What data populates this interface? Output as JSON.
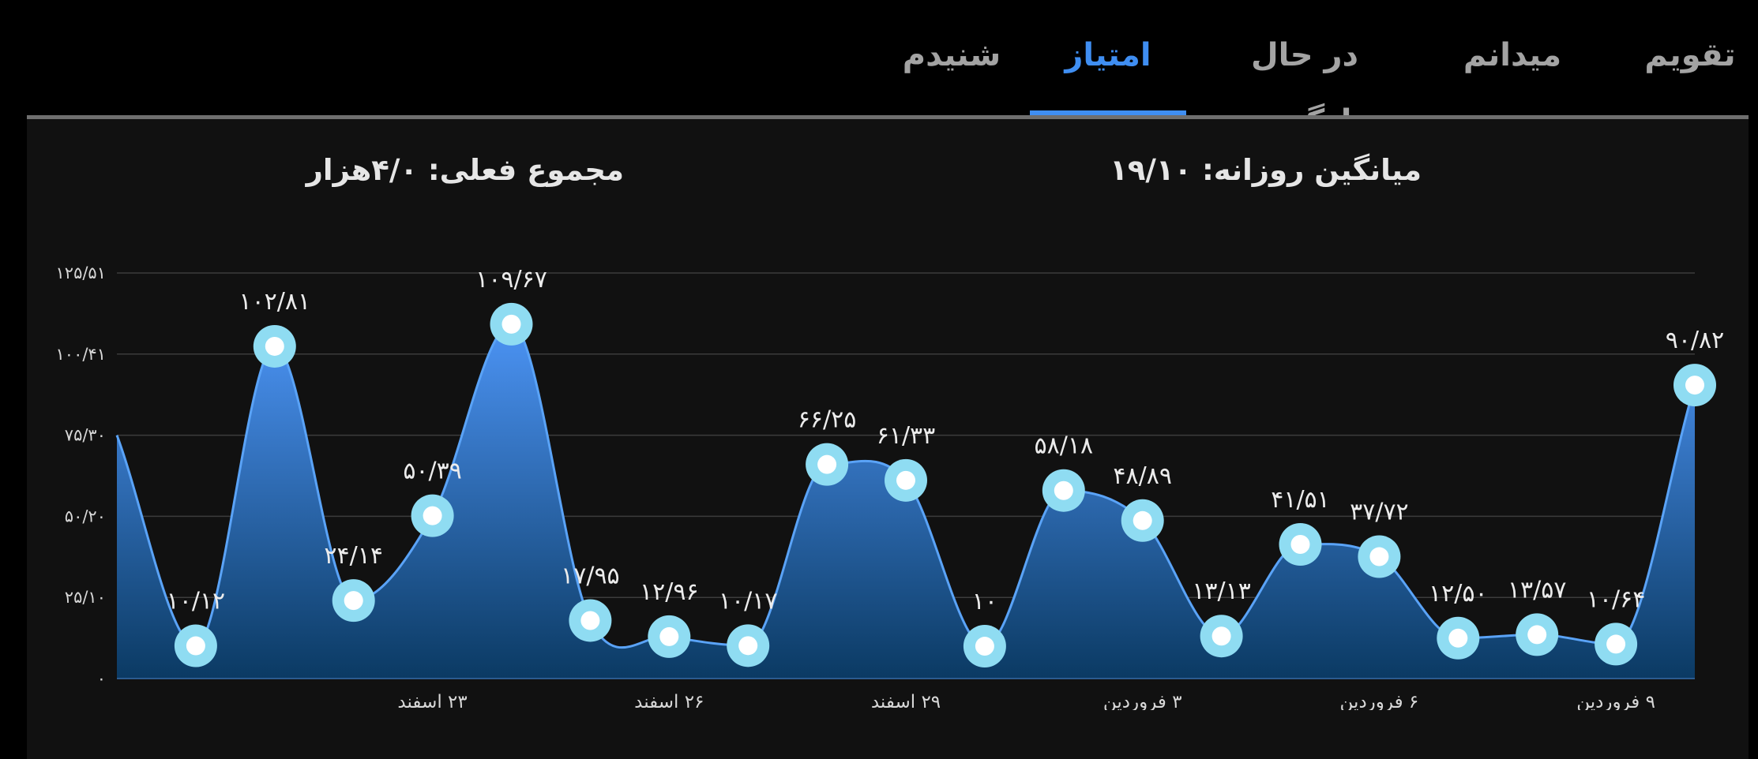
{
  "tabs": [
    {
      "label": "تقویم",
      "active": false
    },
    {
      "label": "میدانم",
      "active": false
    },
    {
      "label": "در حال یادگیری",
      "active": false
    },
    {
      "label": "امتیاز",
      "active": true
    },
    {
      "label": "شنیدم",
      "active": false
    }
  ],
  "summary": {
    "daily_average": "میانگین روزانه: ۱۹/۱۰",
    "current_total": "مجموع فعلی: ۴/۰هزار"
  },
  "colors": {
    "accent": "#3f8ef2",
    "area_top": "#4c94f5",
    "area_bottom": "#0b3a63",
    "marker_ring": "#8fdcf2",
    "marker_center": "#ffffff"
  },
  "chart_data": {
    "type": "area",
    "title": "",
    "xlabel": "",
    "ylabel": "",
    "ylim": [
      0,
      125.51
    ],
    "y_ticks": [
      0,
      25.1,
      50.2,
      75.3,
      100.41,
      125.51
    ],
    "y_tick_labels": [
      "۰",
      "۲۵/۱۰",
      "۵۰/۲۰",
      "۷۵/۳۰",
      "۱۰۰/۴۱",
      "۱۲۵/۵۱"
    ],
    "x_tick_labels": [
      {
        "index": 4,
        "label": "۲۳ اسفند"
      },
      {
        "index": 7,
        "label": "۲۶ اسفند"
      },
      {
        "index": 10,
        "label": "۲۹ اسفند"
      },
      {
        "index": 13,
        "label": "۳ فروردین"
      },
      {
        "index": 16,
        "label": "۶ فروردین"
      },
      {
        "index": 19,
        "label": "۹ فروردین"
      }
    ],
    "values": [
      75.3,
      10.12,
      102.81,
      24.14,
      50.39,
      109.67,
      17.95,
      12.96,
      10.17,
      66.25,
      61.33,
      10,
      58.18,
      48.89,
      13.13,
      41.51,
      37.72,
      12.5,
      13.57,
      10.64,
      90.82
    ],
    "point_labels": [
      "",
      "۱۰/۱۲",
      "۱۰۲/۸۱",
      "۲۴/۱۴",
      "۵۰/۳۹",
      "۱۰۹/۶۷",
      "۱۷/۹۵",
      "۱۲/۹۶",
      "۱۰/۱۷",
      "۶۶/۲۵",
      "۶۱/۳۳",
      "۱۰",
      "۵۸/۱۸",
      "۴۸/۸۹",
      "۱۳/۱۳",
      "۴۱/۵۱",
      "۳۷/۷۲",
      "۱۲/۵۰",
      "۱۳/۵۷",
      "۱۰/۶۴",
      "۹۰/۸۲"
    ],
    "markers": [
      false,
      true,
      true,
      true,
      true,
      true,
      true,
      true,
      true,
      true,
      true,
      true,
      true,
      true,
      true,
      true,
      true,
      true,
      true,
      true,
      true
    ],
    "grid": true
  }
}
